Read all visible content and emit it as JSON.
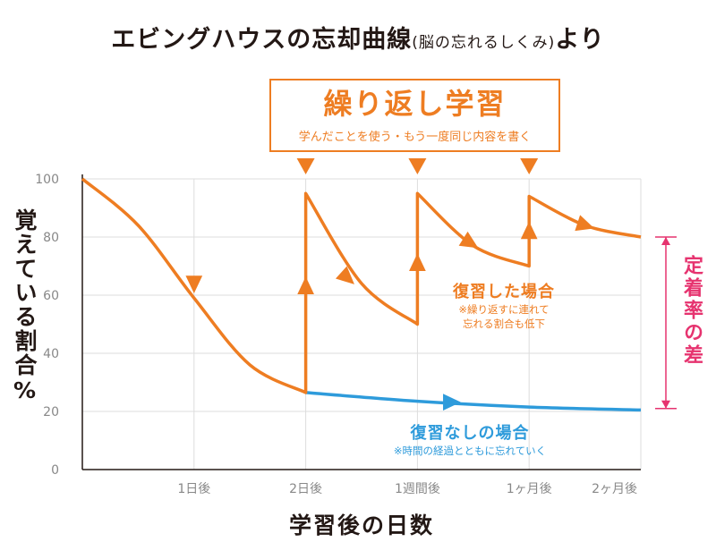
{
  "title": {
    "main": "エビングハウスの忘却曲線",
    "source": "(脳の忘れるしくみ)",
    "suffix": "より"
  },
  "callout": {
    "title": "繰り返し学習",
    "subtitle": "学んだことを使う・もう一度同じ内容を書く"
  },
  "notes": {
    "review_head": "復習した場合",
    "review_line1": "※繰り返すに連れて",
    "review_line2": "忘れる割合も低下",
    "noreview_head": "復習なしの場合",
    "noreview_line1": "※時間の経過とともに忘れていく"
  },
  "difference_label": "定着率の差",
  "colors": {
    "review": "#EE7D22",
    "no_review": "#2E9BDB",
    "difference": "#E6336F"
  },
  "chart_data": {
    "type": "line",
    "ylabel": "覚えている割合%",
    "xlabel": "学習後の日数",
    "ylim": [
      0,
      100
    ],
    "yticks": [
      0,
      20,
      40,
      60,
      80,
      100
    ],
    "x_tick_labels": [
      "1日後",
      "2日後",
      "1週間後",
      "1ヶ月後",
      "2ヶ月後"
    ],
    "x_tick_positions": [
      1,
      2,
      3,
      4,
      5
    ],
    "xlim": [
      0,
      5
    ],
    "grid": true,
    "series": [
      {
        "name": "復習なしの場合",
        "color": "#2E9BDB",
        "points": [
          [
            0,
            100
          ],
          [
            0.5,
            84
          ],
          [
            1,
            59
          ],
          [
            1.5,
            36
          ],
          [
            2,
            26.5
          ],
          [
            3,
            23.5
          ],
          [
            4,
            21.5
          ],
          [
            5,
            20.5
          ]
        ]
      },
      {
        "name": "復習した場合",
        "color": "#EE7D22",
        "points": [
          [
            0,
            100
          ],
          [
            0.5,
            84
          ],
          [
            1,
            59
          ],
          [
            1.5,
            36
          ],
          [
            2,
            26.5
          ],
          [
            2,
            95
          ],
          [
            2.5,
            64
          ],
          [
            3,
            50
          ],
          [
            3,
            95
          ],
          [
            3.5,
            77
          ],
          [
            4,
            70
          ],
          [
            4,
            94
          ],
          [
            4.5,
            84
          ],
          [
            5,
            80
          ]
        ]
      }
    ],
    "review_points_x": [
      2,
      3,
      4
    ],
    "difference_range": [
      21,
      80
    ]
  }
}
